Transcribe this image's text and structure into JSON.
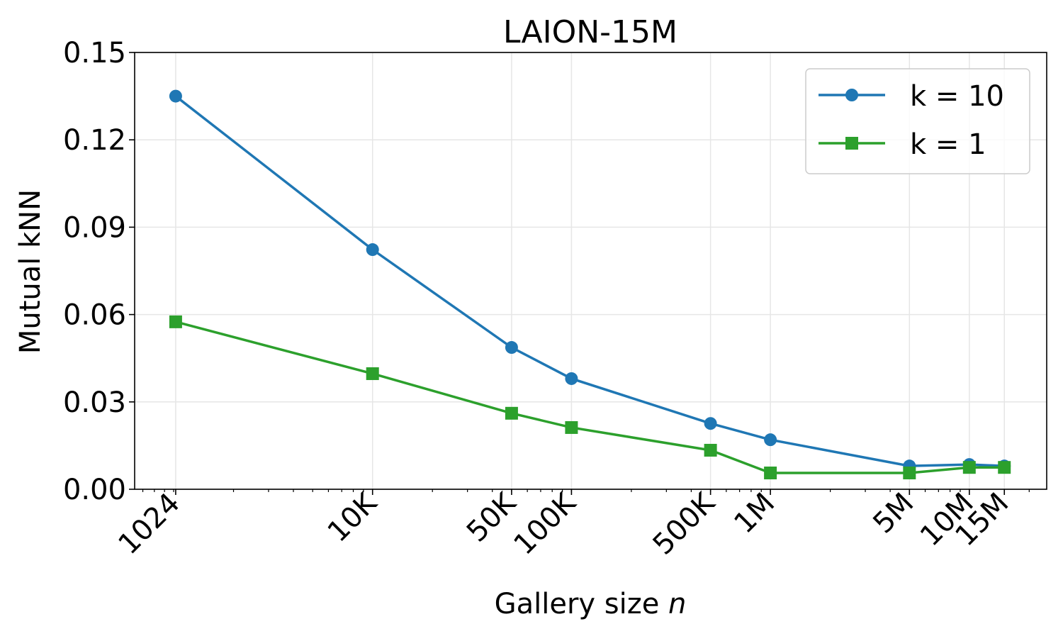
{
  "chart_data": {
    "type": "line",
    "title": "LAION-15M",
    "xlabel": "Gallery size n",
    "xlabel_main": "Gallery size ",
    "xlabel_var": "n",
    "ylabel": "Mutual kNN",
    "xscale": "log",
    "x": [
      1024,
      10000,
      50000,
      100000,
      500000,
      1000000,
      5000000,
      10000000,
      15000000
    ],
    "x_tick_labels": [
      "1024",
      "10K",
      "50K",
      "100K",
      "500K",
      "1M",
      "5M",
      "10M",
      "15M"
    ],
    "y_ticks": [
      "0.00",
      "0.03",
      "0.06",
      "0.09",
      "0.12",
      "0.15"
    ],
    "ylim": [
      0,
      0.15
    ],
    "grid": true,
    "legend_position": "upper right",
    "series": [
      {
        "name": "k = 10",
        "color": "#1f77b4",
        "marker": "circle",
        "values": [
          0.135,
          0.0823,
          0.0487,
          0.038,
          0.0226,
          0.017,
          0.008,
          0.0085,
          0.008
        ]
      },
      {
        "name": "k = 1",
        "color": "#2ca02c",
        "marker": "square",
        "values": [
          0.0575,
          0.0397,
          0.0261,
          0.0212,
          0.0134,
          0.0056,
          0.0056,
          0.0075,
          0.0075
        ]
      }
    ]
  }
}
